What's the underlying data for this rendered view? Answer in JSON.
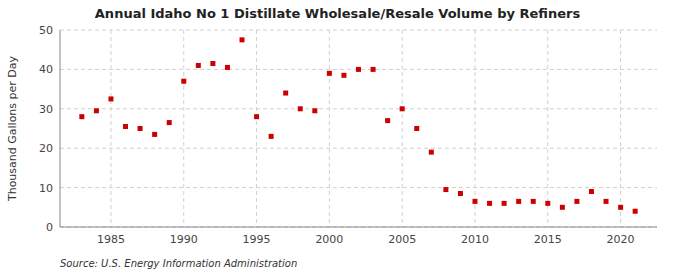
{
  "chart_data": {
    "type": "scatter",
    "title": "Annual Idaho No 1 Distillate Wholesale/Resale Volume by Refiners",
    "ylabel": "Thousand Gallons per Day",
    "source": "Source: U.S. Energy Information Administration",
    "color": "#cc0000",
    "marker": "square",
    "grid": true,
    "xlim": [
      1981.5,
      2022.5
    ],
    "ylim": [
      0,
      50
    ],
    "xticks": [
      1985,
      1990,
      1995,
      2000,
      2005,
      2010,
      2015,
      2020
    ],
    "yticks": [
      0,
      10,
      20,
      30,
      40,
      50
    ],
    "x": [
      1983,
      1984,
      1985,
      1986,
      1987,
      1988,
      1989,
      1990,
      1991,
      1992,
      1993,
      1994,
      1995,
      1996,
      1997,
      1998,
      1999,
      2000,
      2001,
      2002,
      2003,
      2004,
      2005,
      2006,
      2007,
      2008,
      2009,
      2010,
      2011,
      2012,
      2013,
      2014,
      2015,
      2016,
      2017,
      2018,
      2019,
      2020,
      2021
    ],
    "values": [
      28,
      29.5,
      32.5,
      25.5,
      25,
      23.5,
      26.5,
      37,
      41,
      41.5,
      40.5,
      47.5,
      28,
      23,
      34,
      30,
      29.5,
      39,
      38.5,
      40,
      40,
      27,
      30,
      25,
      19,
      9.5,
      8.5,
      6.5,
      6,
      6,
      6.5,
      6.5,
      6,
      5,
      6.5,
      9,
      6.5,
      5,
      4
    ]
  }
}
